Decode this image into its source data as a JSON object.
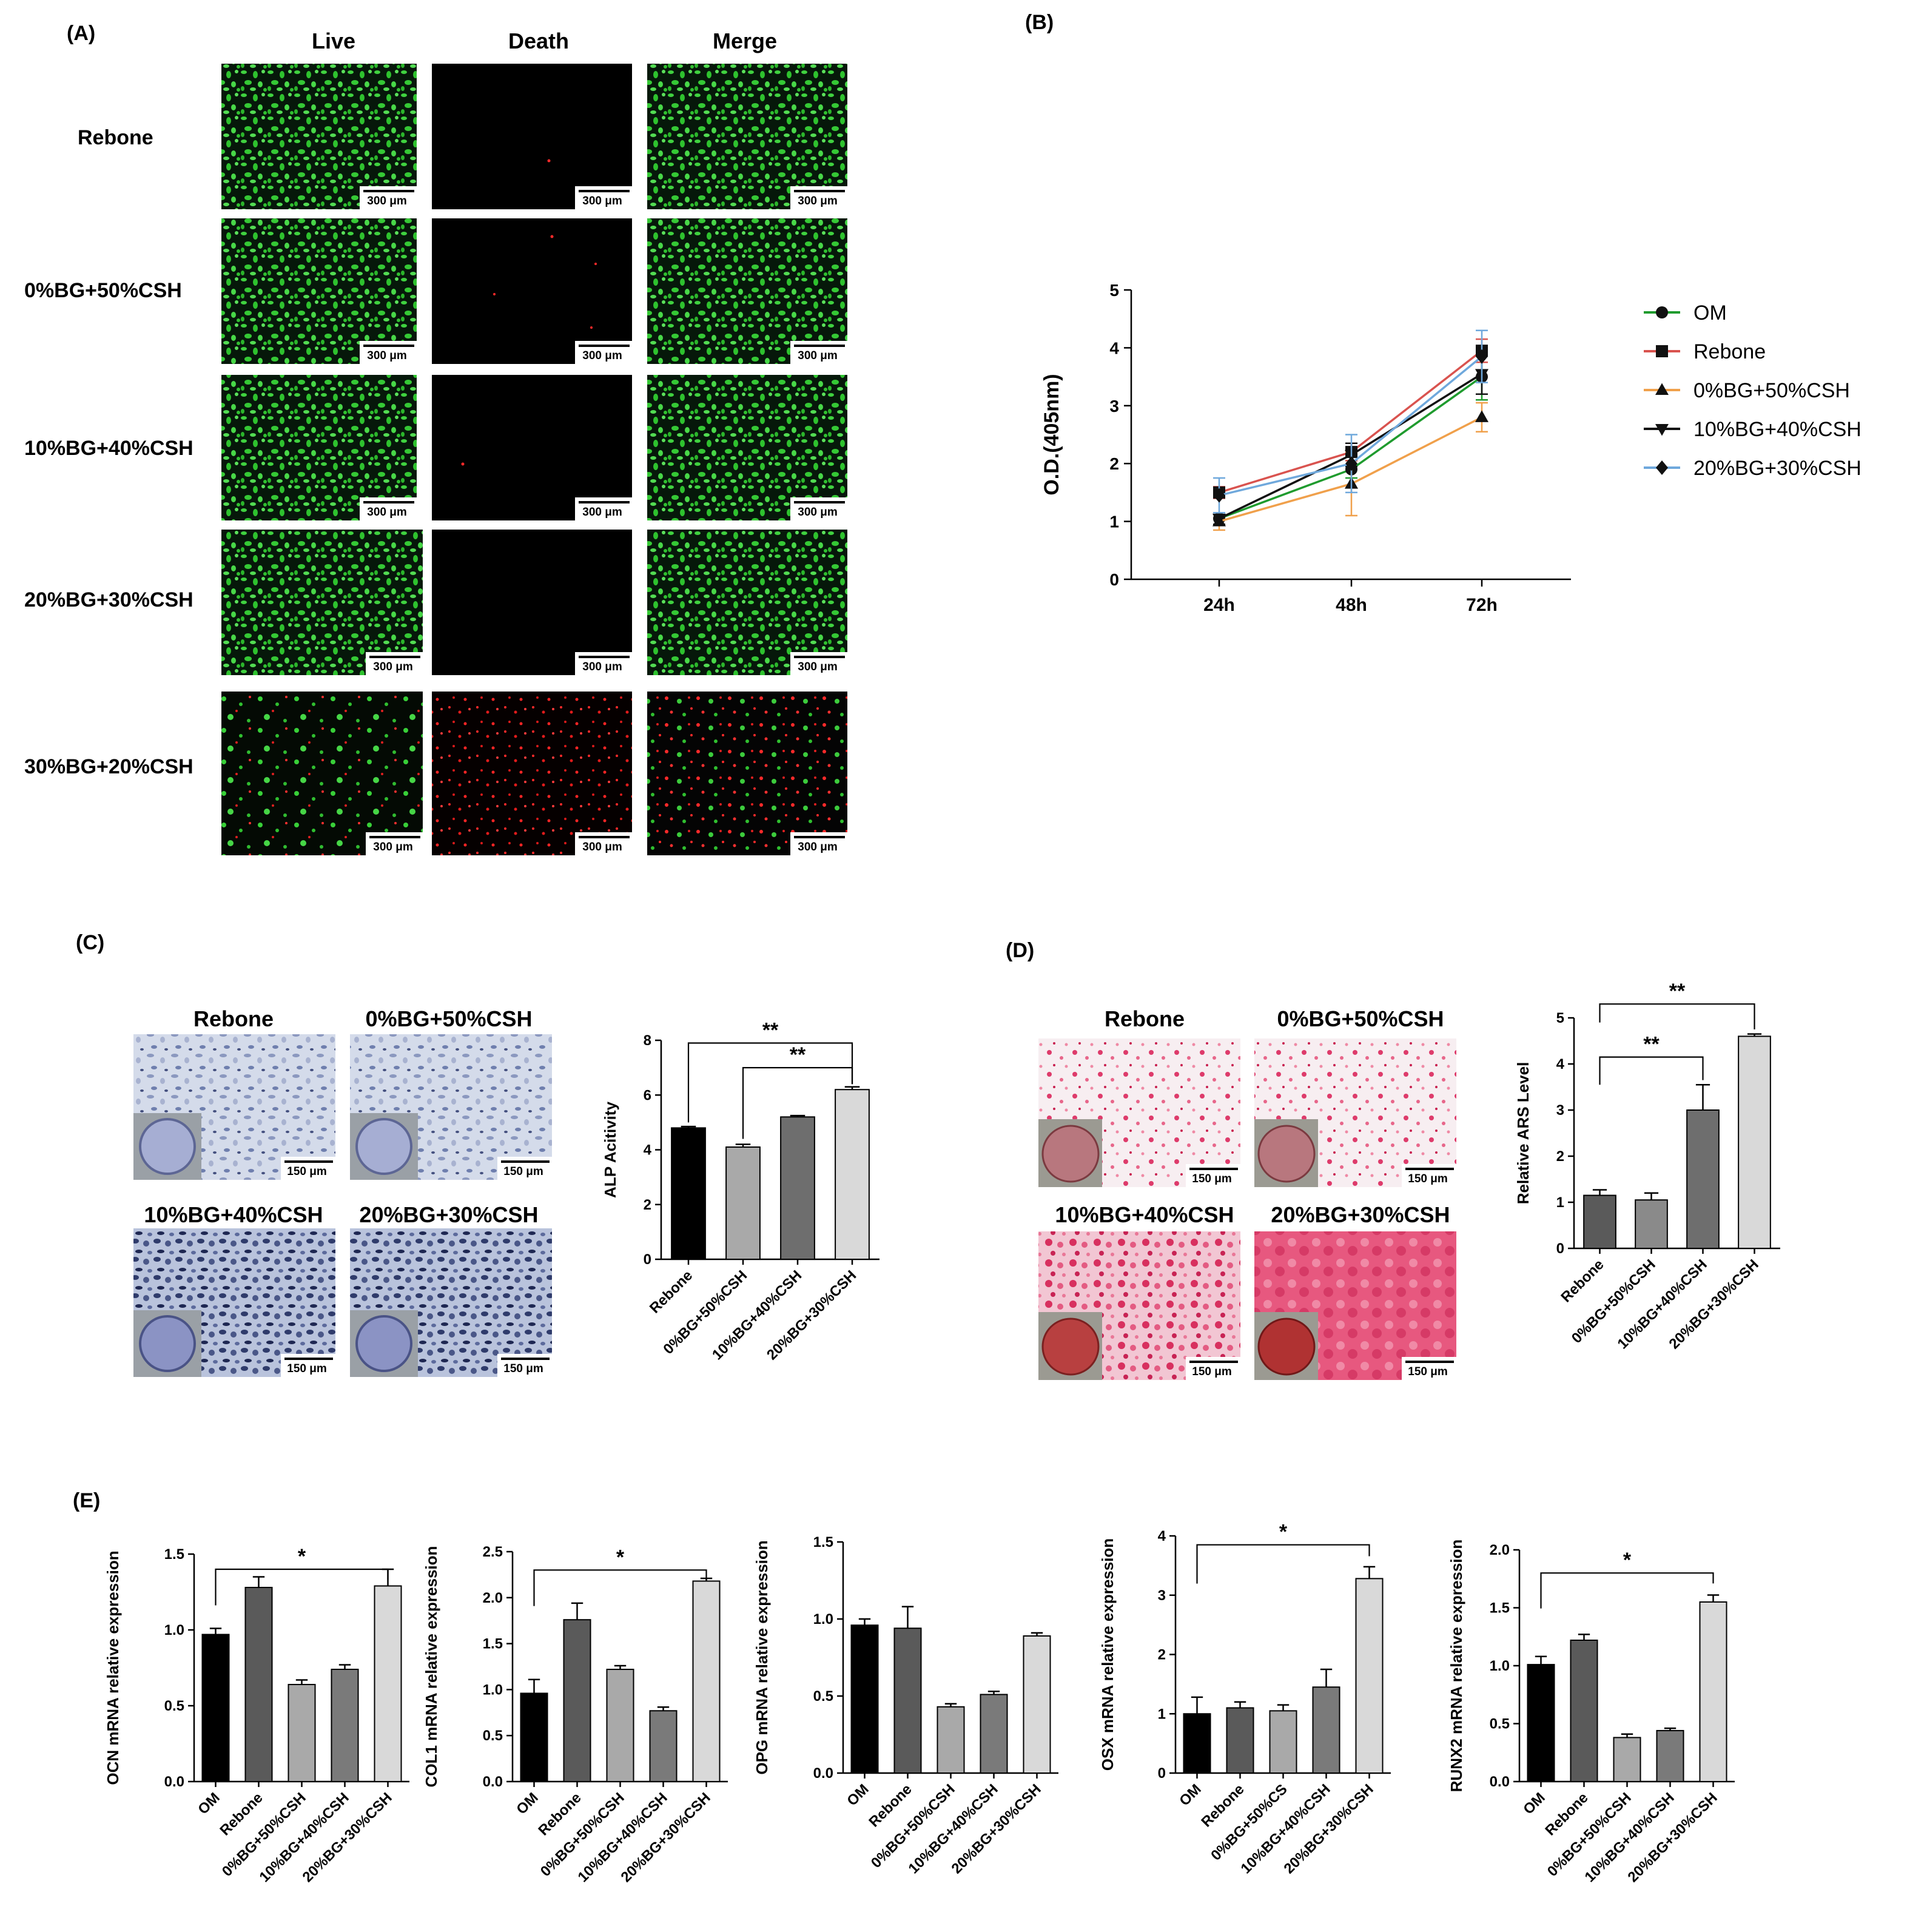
{
  "panelA": {
    "label": "(A)",
    "columns": [
      "Live",
      "Death",
      "Merge"
    ],
    "rows": [
      "Rebone",
      "0%BG+50%CSH",
      "10%BG+40%CSH",
      "20%BG+30%CSH",
      "30%BG+20%CSH"
    ],
    "scalebar": "300 μm"
  },
  "panelB": {
    "label": "(B)",
    "chart_data": {
      "type": "line",
      "ylabel": "O.D.(405nm)",
      "ylim": [
        0,
        5
      ],
      "yticks": [
        0,
        1,
        2,
        3,
        4,
        5
      ],
      "x": [
        "24h",
        "48h",
        "72h"
      ],
      "legend_position": "right",
      "series": [
        {
          "name": "OM",
          "color": "#1f9b2e",
          "marker": "circle",
          "values": [
            1.05,
            1.9,
            3.5
          ],
          "err": [
            0.1,
            0.15,
            0.4
          ]
        },
        {
          "name": "Rebone",
          "color": "#d9534f",
          "marker": "square",
          "values": [
            1.5,
            2.2,
            3.95
          ],
          "err": [
            0.1,
            0.15,
            0.2
          ]
        },
        {
          "name": "0%BG+50%CSH",
          "color": "#f0a04b",
          "marker": "triangle-up",
          "values": [
            1.0,
            1.65,
            2.8
          ],
          "err": [
            0.15,
            0.55,
            0.25
          ]
        },
        {
          "name": "10%BG+40%CSH",
          "color": "#111111",
          "marker": "triangle-down",
          "values": [
            1.05,
            2.15,
            3.55
          ],
          "err": [
            0.1,
            0.2,
            0.35
          ]
        },
        {
          "name": "20%BG+30%CSH",
          "color": "#6fa8dc",
          "marker": "diamond",
          "values": [
            1.45,
            2.0,
            3.85
          ],
          "err": [
            0.3,
            0.5,
            0.45
          ]
        }
      ]
    }
  },
  "panelC": {
    "label": "(C)",
    "image_titles": [
      "Rebone",
      "0%BG+50%CSH",
      "10%BG+40%CSH",
      "20%BG+30%CSH"
    ],
    "scalebar": "150 μm",
    "significance": [
      "**",
      "**"
    ],
    "chart_data": {
      "type": "bar",
      "ylabel": "ALP Acitivity",
      "ylim": [
        0,
        8
      ],
      "yticks": [
        0,
        2,
        4,
        6,
        8
      ],
      "categories": [
        "Rebone",
        "0%BG+50%CSH",
        "10%BG+40%CSH",
        "20%BG+30%CSH"
      ],
      "values": [
        4.8,
        4.1,
        5.2,
        6.2
      ],
      "err": [
        0.05,
        0.1,
        0.05,
        0.1
      ],
      "colors": [
        "#000000",
        "#a9a9a9",
        "#6e6e6e",
        "#d9d9d9"
      ]
    }
  },
  "panelD": {
    "label": "(D)",
    "image_titles": [
      "Rebone",
      "0%BG+50%CSH",
      "10%BG+40%CSH",
      "20%BG+30%CSH"
    ],
    "scalebar": "150 μm",
    "significance": [
      "**",
      "**"
    ],
    "chart_data": {
      "type": "bar",
      "ylabel": "Relative ARS Level",
      "ylim": [
        0,
        5
      ],
      "yticks": [
        0,
        1,
        2,
        3,
        4,
        5
      ],
      "categories": [
        "Rebone",
        "0%BG+50%CSH",
        "10%BG+40%CSH",
        "20%BG+30%CSH"
      ],
      "values": [
        1.15,
        1.05,
        3.0,
        4.6
      ],
      "err": [
        0.12,
        0.15,
        0.55,
        0.05
      ],
      "colors": [
        "#5a5a5a",
        "#8a8a8a",
        "#6e6e6e",
        "#d9d9d9"
      ]
    }
  },
  "panelE": {
    "label": "(E)",
    "charts": [
      {
        "type": "bar",
        "ylabel": "OCN mRNA relative expression",
        "ylim": [
          0,
          1.5
        ],
        "yticks": [
          "0.0",
          "0.5",
          "1.0",
          "1.5"
        ],
        "categories": [
          "OM",
          "Rebone",
          "0%BG+50%CSH",
          "10%BG+40%CSH",
          "20%BG+30%CSH"
        ],
        "values": [
          0.97,
          1.28,
          0.64,
          0.74,
          1.29
        ],
        "err": [
          0.04,
          0.07,
          0.03,
          0.03,
          0.11
        ],
        "sig": "*"
      },
      {
        "type": "bar",
        "ylabel": "COL1 mRNA relative expression",
        "ylim": [
          0,
          2.5
        ],
        "yticks": [
          "0.0",
          "0.5",
          "1.0",
          "1.5",
          "2.0",
          "2.5"
        ],
        "categories": [
          "OM",
          "Rebone",
          "0%BG+50%CSH",
          "10%BG+40%CSH",
          "20%BG+30%CSH"
        ],
        "values": [
          0.96,
          1.76,
          1.22,
          0.77,
          2.18
        ],
        "err": [
          0.15,
          0.18,
          0.04,
          0.04,
          0.03
        ],
        "sig": "*"
      },
      {
        "type": "bar",
        "ylabel": "OPG mRNA relative expression",
        "ylim": [
          0,
          1.5
        ],
        "yticks": [
          "0.0",
          "0.5",
          "1.0",
          "1.5"
        ],
        "categories": [
          "OM",
          "Rebone",
          "0%BG+50%CSH",
          "10%BG+40%CSH",
          "20%BG+30%CSH"
        ],
        "values": [
          0.96,
          0.94,
          0.43,
          0.51,
          0.89
        ],
        "err": [
          0.04,
          0.14,
          0.02,
          0.02,
          0.02
        ],
        "sig": ""
      },
      {
        "type": "bar",
        "ylabel": "OSX mRNA relative expression",
        "ylim": [
          0,
          4
        ],
        "yticks": [
          "0",
          "1",
          "2",
          "3",
          "4"
        ],
        "categories": [
          "OM",
          "Rebone",
          "0%BG+50%CS",
          "10%BG+40%CSH",
          "20%BG+30%CSH"
        ],
        "values": [
          1.0,
          1.1,
          1.05,
          1.45,
          3.28
        ],
        "err": [
          0.28,
          0.1,
          0.1,
          0.3,
          0.2
        ],
        "sig": "*"
      },
      {
        "type": "bar",
        "ylabel": "RUNX2 mRNA relative expression",
        "ylim": [
          0,
          2.0
        ],
        "yticks": [
          "0.0",
          "0.5",
          "1.0",
          "1.5",
          "2.0"
        ],
        "categories": [
          "OM",
          "Rebone",
          "0%BG+50%CSH",
          "10%BG+40%CSH",
          "20%BG+30%CSH"
        ],
        "values": [
          1.01,
          1.22,
          0.38,
          0.44,
          1.55
        ],
        "err": [
          0.07,
          0.05,
          0.03,
          0.02,
          0.06
        ],
        "sig": "*"
      }
    ],
    "colors": [
      "#000000",
      "#5a5a5a",
      "#a9a9a9",
      "#7a7a7a",
      "#d9d9d9"
    ]
  }
}
